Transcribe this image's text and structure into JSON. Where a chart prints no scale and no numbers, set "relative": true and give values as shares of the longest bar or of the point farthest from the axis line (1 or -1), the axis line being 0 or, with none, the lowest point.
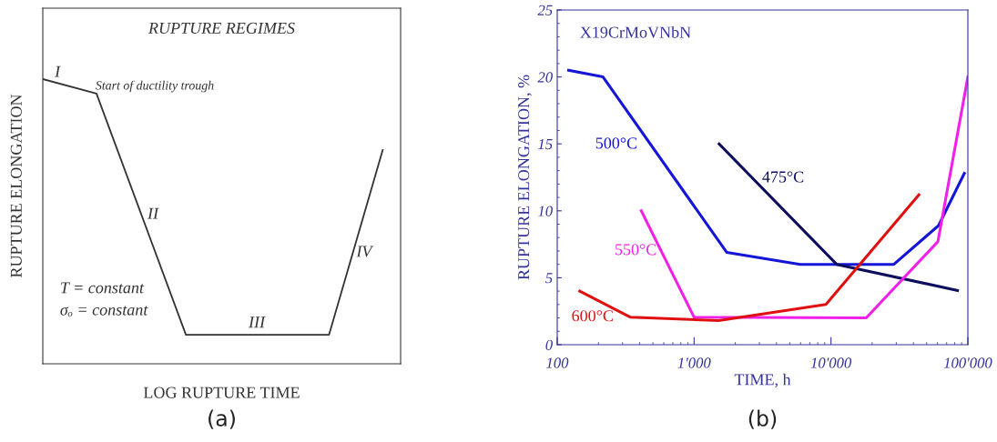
{
  "chart_data": [
    {
      "type": "line",
      "title": "RUPTURE REGIMES",
      "xlabel": "LOG RUPTURE TIME",
      "ylabel": "RUPTURE ELONGATION",
      "relative": true,
      "tick_labels": false,
      "categories": [
        null,
        null,
        null,
        null,
        null,
        null,
        null,
        null,
        null,
        null,
        null,
        null,
        null,
        null,
        null,
        null,
        null,
        null,
        null,
        null,
        null
      ],
      "series": [
        {
          "color": "#333333",
          "values": [
            1,
            null,
            null,
            0.949,
            null,
            null,
            null,
            null,
            0.102,
            null,
            null,
            null,
            null,
            null,
            null,
            null,
            0.102,
            null,
            null,
            0.751,
            null
          ]
        }
      ],
      "annotations": [
        "I",
        "Start of ductility trough",
        "II",
        "III",
        "IV",
        "T = constant",
        "σₒ = constant",
        "(a)"
      ]
    },
    {
      "type": "line",
      "xlabel": "TIME, h",
      "ylabel": "RUPTURE ELONGATION, %",
      "log": "x",
      "xlim": [
        100,
        100000
      ],
      "ylim": [
        0,
        25
      ],
      "xticks": [
        100,
        {
          "value": 1000,
          "label": "1'000"
        },
        {
          "value": 10000,
          "label": "10'000"
        },
        {
          "value": 100000,
          "label": "100'000"
        }
      ],
      "yticks": [
        0,
        5,
        10,
        15,
        20,
        25
      ],
      "series": [
        {
          "color": "#1515d8",
          "x": [
            121,
            216,
            1730,
            5960,
            11000,
            28800,
            61100,
            94200
          ],
          "values": [
            20.5,
            20,
            6.9,
            6,
            6,
            6,
            8.9,
            12.8
          ]
        },
        {
          "color": "#0d0d5e",
          "x": [
            1524,
            11000,
            84000
          ],
          "values": [
            15,
            6,
            4.05
          ]
        },
        {
          "color": "#f020e8",
          "x": [
            411,
            1000,
            18100,
            60400,
            100000
          ],
          "values": [
            10,
            2.05,
            2,
            7.7,
            20
          ]
        },
        {
          "color": "#e01010",
          "x": [
            146,
            343,
            1510,
            9180,
            43900
          ],
          "values": [
            4,
            2.05,
            1.8,
            3,
            11.2
          ]
        }
      ],
      "annotations": [
        "500°C",
        "475°C",
        "550°C",
        "600°C",
        "X19CrMoVNbN",
        "(b)"
      ]
    }
  ]
}
